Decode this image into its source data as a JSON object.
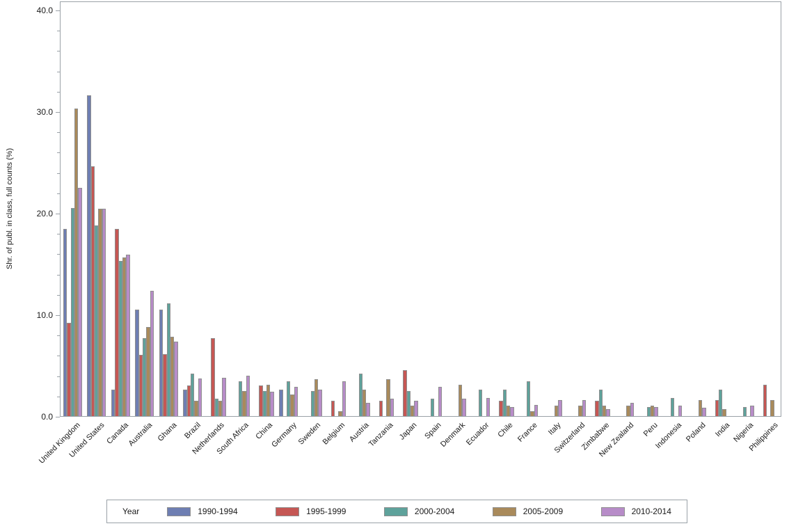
{
  "chart_data": {
    "type": "bar",
    "title": "",
    "ylabel": "Shr. of publ. in class, full counts (%)",
    "xlabel": "",
    "ylim": [
      0,
      40.85
    ],
    "yticks": [
      0,
      10,
      20,
      30,
      40
    ],
    "ytick_labels": [
      "0.0",
      "10.0",
      "20.0",
      "30.0",
      "40.0"
    ],
    "minor_tick_step": 2,
    "grid": "off",
    "legend_position": "bottom",
    "legend_title": "Year",
    "categories": [
      "United Kingdom",
      "United States",
      "Canada",
      "Australia",
      "Ghana",
      "Brazil",
      "Netherlands",
      "South Africa",
      "China",
      "Germany",
      "Sweden",
      "Belgium",
      "Austria",
      "Tanzania",
      "Japan",
      "Spain",
      "Denmark",
      "Ecuador",
      "Chile",
      "France",
      "Italy",
      "Switzerland",
      "Zimbabwe",
      "New Zealand",
      "Peru",
      "Indonesia",
      "Poland",
      "India",
      "Nigeria",
      "Philippines"
    ],
    "series": [
      {
        "name": "1990-1994",
        "color": "#6e7eb2",
        "values": [
          18.4,
          31.6,
          2.6,
          10.5,
          10.5,
          2.6,
          0,
          0,
          0,
          2.6,
          0,
          0,
          0,
          0,
          0,
          0,
          0,
          0,
          0,
          0,
          0,
          0,
          0,
          0,
          0,
          0,
          0,
          0,
          0,
          0
        ]
      },
      {
        "name": "1995-1999",
        "color": "#c55754",
        "values": [
          9.2,
          24.6,
          18.4,
          6.0,
          6.1,
          3.0,
          7.7,
          0,
          3.0,
          0,
          0,
          1.5,
          0,
          1.5,
          4.5,
          0,
          0,
          0,
          1.5,
          0,
          0,
          0,
          1.5,
          0,
          0,
          0,
          0,
          1.6,
          0,
          3.1
        ]
      },
      {
        "name": "2000-2004",
        "color": "#5ea29b",
        "values": [
          20.5,
          18.8,
          15.3,
          7.7,
          11.1,
          4.2,
          1.7,
          3.4,
          2.5,
          3.4,
          2.5,
          0,
          4.2,
          0,
          2.5,
          1.7,
          0,
          2.6,
          2.6,
          3.4,
          0,
          0,
          2.6,
          0,
          0.9,
          1.8,
          0,
          2.6,
          0.9,
          0
        ]
      },
      {
        "name": "2005-2009",
        "color": "#a98a5b",
        "values": [
          30.3,
          20.4,
          15.6,
          8.8,
          7.8,
          1.5,
          1.5,
          2.5,
          3.1,
          2.1,
          3.6,
          0.5,
          2.6,
          3.6,
          1.0,
          0,
          3.1,
          0,
          1.0,
          0.5,
          1.0,
          1.0,
          1.0,
          1.0,
          1.0,
          0,
          1.6,
          0.7,
          0,
          1.6
        ]
      },
      {
        "name": "2010-2014",
        "color": "#b78cc8",
        "values": [
          22.5,
          20.4,
          15.9,
          12.3,
          7.3,
          3.7,
          3.8,
          4.0,
          2.4,
          2.9,
          2.6,
          3.4,
          1.3,
          1.7,
          1.5,
          2.9,
          1.7,
          1.8,
          0.9,
          1.1,
          1.6,
          1.6,
          0.7,
          1.3,
          0.9,
          1.0,
          0.8,
          0,
          1.0,
          0
        ]
      }
    ]
  },
  "axis_colors": {
    "frame": "#9aa1a7",
    "bar_outline": "#8f8f8f",
    "text": "#1a1a1a"
  }
}
